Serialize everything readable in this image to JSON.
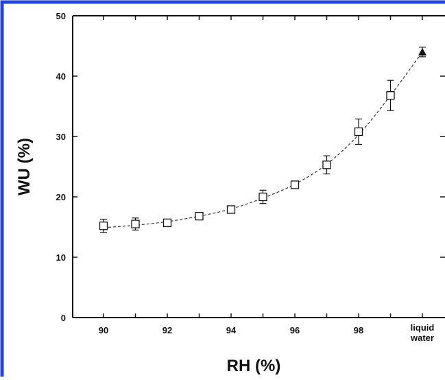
{
  "colors": {
    "frame_border": "#2244dd",
    "axis": "#111111",
    "marker": "#111111",
    "fit_line": "#333333"
  },
  "chart_data": {
    "type": "scatter",
    "title": "",
    "xlabel": "RH (%)",
    "ylabel": "WU (%)",
    "ylim": [
      0,
      50
    ],
    "yticks": [
      0,
      10,
      20,
      30,
      40,
      50
    ],
    "x_tick_labels": [
      "90",
      "92",
      "94",
      "96",
      "98",
      "liquid water"
    ],
    "x_categories": [
      "90",
      "91",
      "92",
      "93",
      "94",
      "95",
      "96",
      "97",
      "98",
      "99",
      "liquid water"
    ],
    "grid": false,
    "legend": "none",
    "series": [
      {
        "marker": "open-square",
        "x": [
          "90",
          "91",
          "92",
          "93",
          "94",
          "95",
          "96",
          "97",
          "98",
          "99"
        ],
        "y": [
          15.2,
          15.5,
          15.7,
          16.8,
          17.9,
          20.0,
          22.0,
          25.3,
          30.8,
          36.8
        ],
        "error": [
          1.1,
          1.0,
          0.5,
          0.5,
          0.5,
          1.1,
          0.6,
          1.5,
          2.1,
          2.5
        ]
      },
      {
        "marker": "filled-triangle",
        "x": [
          "liquid water"
        ],
        "y": [
          44.0
        ],
        "error": [
          0.8
        ]
      }
    ],
    "fit_line": {
      "style": "dashed",
      "x": [
        "90",
        "91",
        "92",
        "93",
        "94",
        "95",
        "96",
        "97",
        "98",
        "99",
        "liquid water"
      ],
      "y": [
        14.9,
        15.3,
        15.9,
        16.8,
        18.0,
        19.8,
        22.1,
        25.4,
        30.3,
        36.8,
        44.0
      ]
    }
  }
}
